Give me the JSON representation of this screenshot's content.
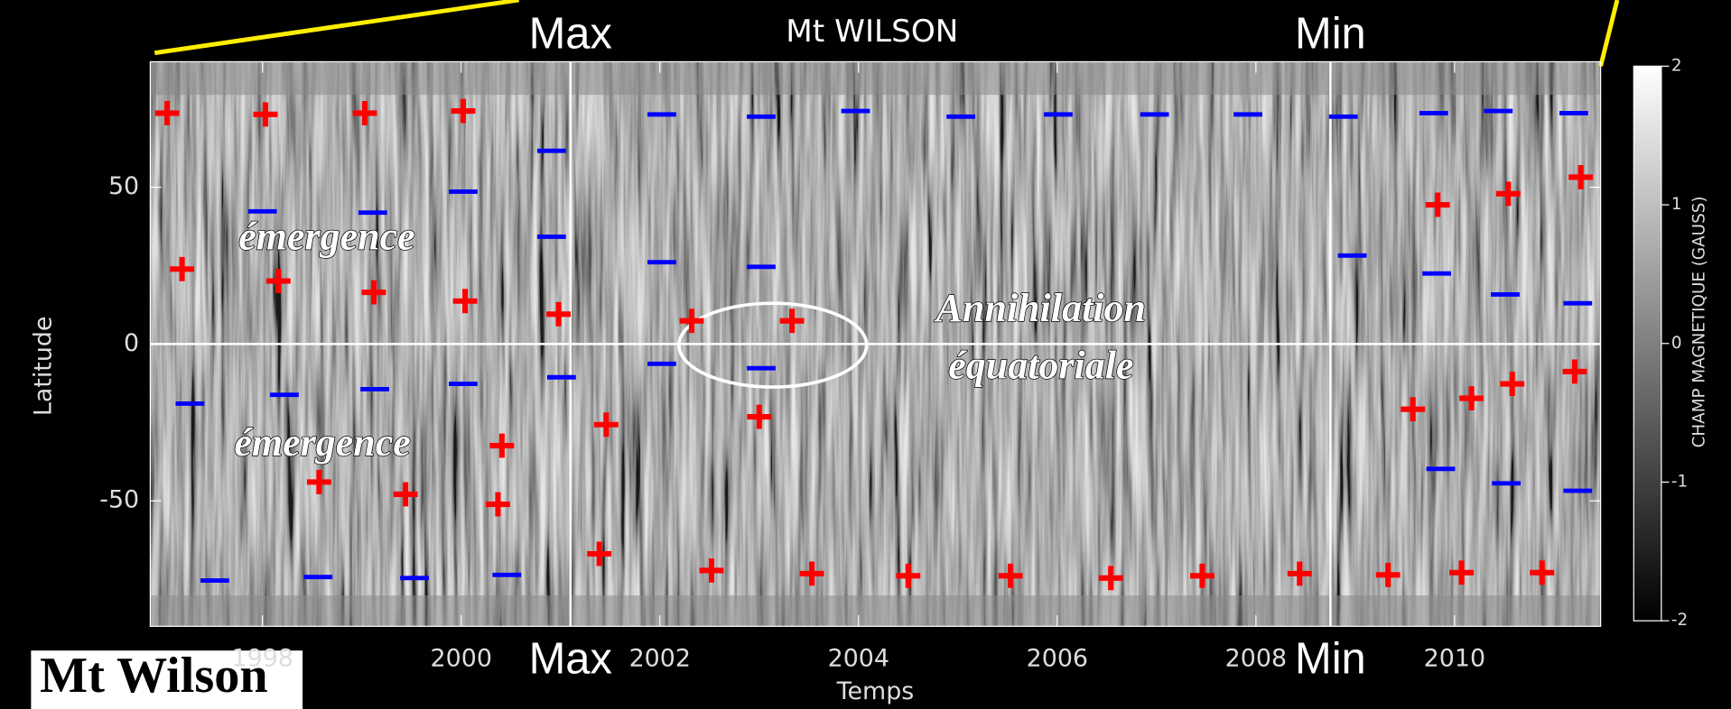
{
  "chart_data": {
    "type": "scatter",
    "title": "Mt WILSON",
    "x_label": "Temps",
    "y_label": "Latitude",
    "corner_label": "Mt Wilson",
    "top_markers": [
      {
        "label": "Max",
        "x": 2001.1
      },
      {
        "label": "Min",
        "x": 2008.75
      }
    ],
    "bottom_markers": [
      {
        "label": "Max",
        "x": 2001.1
      },
      {
        "label": "Min",
        "x": 2008.75
      }
    ],
    "annotations": [
      "émergence",
      "émergence",
      "Annihilation",
      "équatoriale"
    ],
    "xlim": [
      1996.87,
      2011.47
    ],
    "ylim": [
      -90,
      90
    ],
    "xticks": [
      1998,
      2000,
      2002,
      2004,
      2006,
      2008,
      2010
    ],
    "yticks": [
      -50,
      0,
      50
    ],
    "hline": 0,
    "series": [
      {
        "marker": "+",
        "color": "#ff0000",
        "x": [
          1997.04,
          1998.03,
          1999.03,
          2000.02,
          1997.19,
          1998.16,
          1999.12,
          2000.04,
          2000.98,
          2002.32,
          2003.33,
          2009.83,
          2010.54,
          2011.27,
          2009.58,
          2010.17,
          2010.58,
          2011.21,
          2001.46,
          2003.0,
          2000.41,
          1998.57,
          1999.44,
          2000.37,
          2001.39,
          2002.52,
          2003.53,
          2004.5,
          2005.53,
          2006.54,
          2007.46,
          2008.44,
          2009.33,
          2010.07,
          2010.88
        ],
        "y": [
          73.6,
          73.2,
          73.6,
          74.3,
          23.9,
          20.1,
          16.5,
          13.7,
          9.5,
          7.4,
          7.4,
          44.4,
          47.9,
          53.2,
          -20.8,
          -17.3,
          -12.7,
          -8.8,
          -25.7,
          -23.2,
          -32.4,
          -44.0,
          -47.9,
          -51.1,
          -66.9,
          -72.2,
          -73.2,
          -73.9,
          -73.9,
          -74.6,
          -73.9,
          -73.2,
          -73.6,
          -72.9,
          -72.9
        ]
      },
      {
        "marker": "-",
        "color": "#0000ff",
        "x": [
          2002.02,
          2003.02,
          2003.97,
          2005.03,
          2006.01,
          2006.98,
          2007.92,
          2008.88,
          2009.79,
          2010.44,
          2011.2,
          2000.91,
          2000.02,
          1998.0,
          1999.11,
          2000.91,
          2002.02,
          2003.02,
          2008.97,
          2009.82,
          2010.51,
          2011.24,
          2002.02,
          2003.02,
          1997.27,
          1998.22,
          1999.13,
          2000.02,
          2001.01,
          2009.86,
          2010.52,
          2011.24,
          1997.52,
          1998.56,
          1999.53,
          2000.46
        ],
        "y": [
          73.2,
          72.5,
          74.3,
          72.5,
          73.2,
          73.2,
          73.2,
          72.5,
          73.6,
          74.3,
          73.6,
          61.6,
          48.6,
          42.3,
          41.9,
          34.2,
          26.1,
          24.6,
          28.2,
          22.5,
          15.8,
          13.0,
          -6.3,
          -7.7,
          -19.0,
          -16.2,
          -14.4,
          -12.7,
          -10.6,
          -39.8,
          -44.4,
          -46.8,
          -75.4,
          -74.3,
          -74.6,
          -73.6
        ]
      }
    ],
    "colorbar": {
      "label": "CHAMP MAGNETIQUE (GAUSS)",
      "lim": [
        -2,
        2
      ],
      "ticks": [
        -2,
        -1,
        0,
        1,
        2
      ]
    }
  }
}
